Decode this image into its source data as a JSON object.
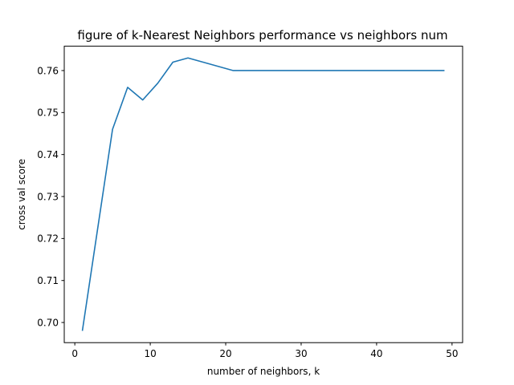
{
  "chart_data": {
    "type": "line",
    "title": "figure of k-Nearest Neighbors performance vs neighbors num",
    "xlabel": "number of neighbors, k",
    "ylabel": "cross val score",
    "xlim": [
      -1.4,
      51.4
    ],
    "ylim": [
      0.6952,
      0.7658
    ],
    "x_ticks": [
      0,
      10,
      20,
      30,
      40,
      50
    ],
    "x_tick_labels": [
      "0",
      "10",
      "20",
      "30",
      "40",
      "50"
    ],
    "y_ticks": [
      0.7,
      0.71,
      0.72,
      0.73,
      0.74,
      0.75,
      0.76
    ],
    "y_tick_labels": [
      "0.70",
      "0.71",
      "0.72",
      "0.73",
      "0.74",
      "0.75",
      "0.76"
    ],
    "grid": false,
    "series": [
      {
        "color": "#1f77b4",
        "x": [
          1,
          3,
          5,
          7,
          9,
          11,
          13,
          15,
          17,
          19,
          21,
          23,
          25,
          27,
          29,
          31,
          33,
          35,
          37,
          39,
          41,
          43,
          45,
          47,
          49
        ],
        "y": [
          0.698,
          0.722,
          0.746,
          0.756,
          0.753,
          0.757,
          0.762,
          0.763,
          0.762,
          0.761,
          0.76,
          0.76,
          0.76,
          0.76,
          0.76,
          0.76,
          0.76,
          0.76,
          0.76,
          0.76,
          0.76,
          0.76,
          0.76,
          0.76,
          0.76
        ]
      }
    ]
  }
}
